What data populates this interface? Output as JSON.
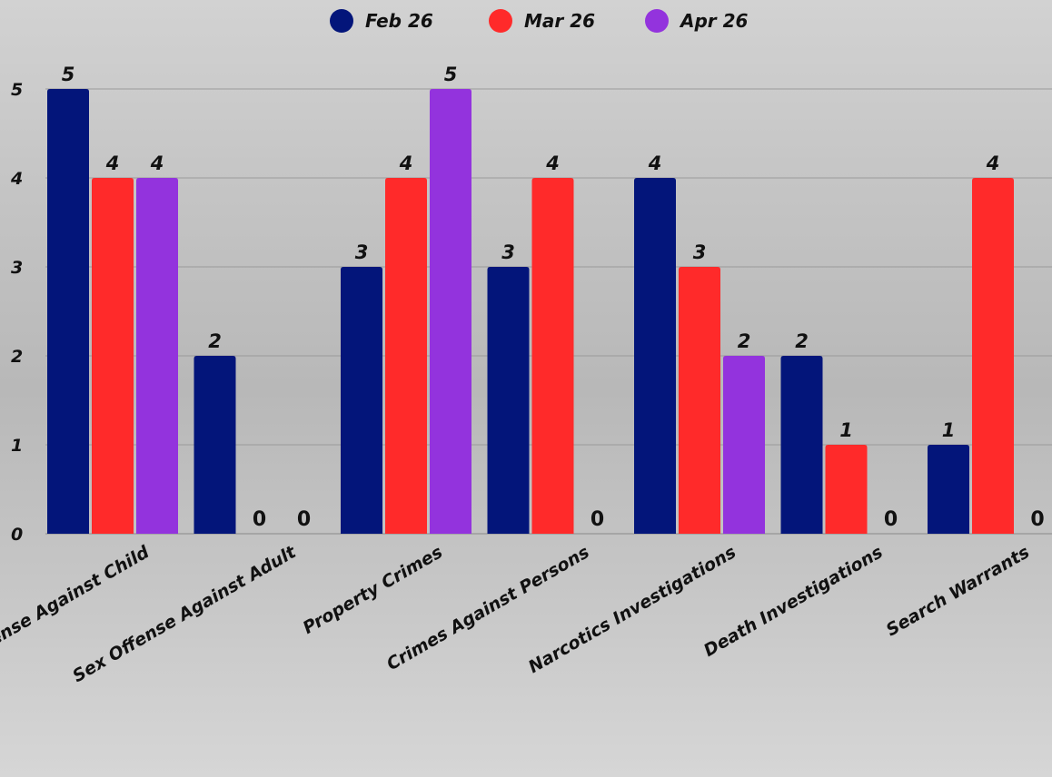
{
  "chart_data": {
    "type": "bar",
    "categories": [
      "Sex Offense Against Child",
      "Sex Offense Against Adult",
      "Property Crimes",
      "Crimes Against Persons",
      "Narcotics Investigations",
      "Death Investigations",
      "Search Warrants"
    ],
    "series": [
      {
        "name": "Feb 26",
        "color": "#03157a",
        "values": [
          5,
          2,
          3,
          3,
          4,
          2,
          1
        ]
      },
      {
        "name": "Mar 26",
        "color": "#ff2a2a",
        "values": [
          4,
          0,
          4,
          4,
          3,
          1,
          4
        ]
      },
      {
        "name": "Apr 26",
        "color": "#9333dd",
        "values": [
          4,
          0,
          5,
          0,
          2,
          0,
          0
        ]
      }
    ],
    "ylim": [
      0,
      5
    ],
    "yticks": [
      0,
      1,
      2,
      3,
      4,
      5
    ],
    "grid": true,
    "legend_position": "top-center",
    "title": "",
    "xlabel": "",
    "ylabel": ""
  }
}
